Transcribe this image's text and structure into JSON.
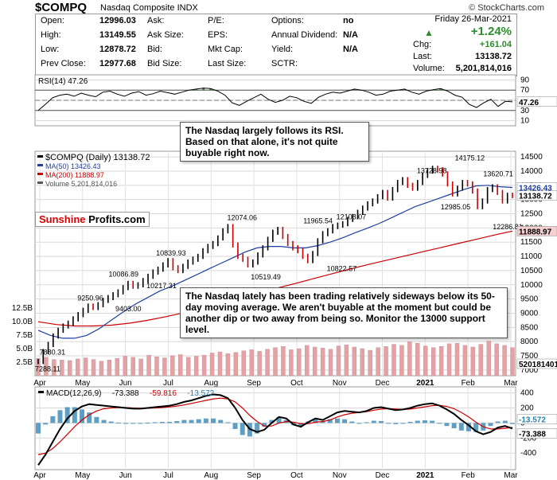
{
  "header": {
    "symbol": "$COMPQ",
    "name": "Nasdaq Composite INDX",
    "source": "© StockCharts.com"
  },
  "quote": {
    "date": "Friday 26-Mar-2021",
    "open_label": "Open:",
    "open": "12996.03",
    "high_label": "High:",
    "high": "13149.55",
    "low_label": "Low:",
    "low": "12878.72",
    "prev_label": "Prev Close:",
    "prev": "12977.68",
    "ask_label": "Ask:",
    "asksize_label": "Ask Size:",
    "bid_label": "Bid:",
    "bidsize_label": "Bid Size:",
    "pe_label": "P/E:",
    "eps_label": "EPS:",
    "mktcap_label": "Mkt Cap:",
    "lastsize_label": "Last Size:",
    "options_label": "Options:",
    "options": "no",
    "div_label": "Annual Dividend:",
    "div": "N/A",
    "yield_label": "Yield:",
    "yield": "N/A",
    "sctr_label": "SCTR:",
    "chg_pct": "+1.24%",
    "chg_label": "Chg:",
    "chg": "+161.04",
    "last_label": "Last:",
    "last": "13138.72",
    "volume_label": "Volume:",
    "volume": "5,201,814,016"
  },
  "logo": {
    "a": "Sunshine",
    "b": "Profits.com"
  },
  "notes": {
    "rsi": "The Nasdaq largely follows its RSI. Based on that alone, it's not quite buyable right now.",
    "ma": "The Nasdaq lately has been trading relatively sideways below its 50-day moving average. We aren't buyable at the moment but could be another dip or two away from being so. Monitor the 13000 support level."
  },
  "colors": {
    "price_up": "#000000",
    "price_down": "#cc0000",
    "ma50": "#1f3fa0",
    "ma200": "#cc0000",
    "volume": "#e3a3a6",
    "rsi_line": "#000000",
    "rsi_fill": "#3a8a3a",
    "macd": "#000000",
    "signal": "#cc0000",
    "histogram": "#2a7fb0"
  },
  "chart_data": [
    {
      "type": "line",
      "panel": "rsi",
      "legend": "RSI(14) 47.26",
      "last_value_label": "47.26",
      "y_ticks": [
        "70",
        "50",
        "30",
        "10",
        "90"
      ],
      "y_tick_values": [
        70,
        50,
        30,
        10,
        90
      ],
      "ylim": [
        0,
        100
      ],
      "reference_lines": [
        70,
        30
      ],
      "series": [
        {
          "name": "RSI(14)",
          "values": [
            30,
            42,
            55,
            60,
            62,
            58,
            64,
            60,
            57,
            66,
            68,
            62,
            58,
            64,
            67,
            60,
            63,
            68,
            65,
            62,
            66,
            70,
            72,
            74,
            73,
            68,
            60,
            45,
            40,
            48,
            55,
            62,
            52,
            46,
            50,
            58,
            55,
            48,
            44,
            56,
            62,
            66,
            64,
            68,
            72,
            70,
            66,
            60,
            62,
            68,
            70,
            72,
            66,
            62,
            68,
            71,
            73,
            68,
            60,
            56,
            42,
            36,
            45,
            52,
            38,
            48,
            47
          ]
        }
      ]
    },
    {
      "type": "line",
      "panel": "price",
      "legend_items": [
        "$COMPQ (Daily) 13138.72",
        "MA(50) 13426.43",
        "MA(200) 11888.97",
        "Volume 5,201,814,016"
      ],
      "x_labels": [
        "Apr",
        "May",
        "Jun",
        "Jul",
        "Aug",
        "Sep",
        "Oct",
        "Nov",
        "Dec",
        "2021",
        "Feb",
        "Mar"
      ],
      "y_ticks": [
        "14500",
        "14000",
        "13500",
        "13000",
        "12500",
        "12000",
        "11500",
        "11000",
        "10500",
        "10000",
        "9500",
        "9000",
        "8500",
        "8000",
        "7500",
        "7000"
      ],
      "y_tick_values": [
        14500,
        14000,
        13500,
        13000,
        12500,
        12000,
        11500,
        11000,
        10500,
        10000,
        9500,
        9000,
        8500,
        8000,
        7500,
        7000
      ],
      "ylim": [
        6800,
        14700
      ],
      "price_annotations": [
        {
          "label": "7288.11",
          "value": 7288.11
        },
        {
          "label": "7880.31",
          "value": 7880.31
        },
        {
          "label": "9250.96",
          "value": 9250.96
        },
        {
          "label": "9403.00",
          "value": 9403.0
        },
        {
          "label": "10086.89",
          "value": 10086.89
        },
        {
          "label": "10217.31",
          "value": 10217.31
        },
        {
          "label": "10839.93",
          "value": 10839.93
        },
        {
          "label": "12074.06",
          "value": 12074.06
        },
        {
          "label": "10519.49",
          "value": 10519.49
        },
        {
          "label": "11965.54",
          "value": 11965.54
        },
        {
          "label": "10822.57",
          "value": 10822.57
        },
        {
          "label": "12108.07",
          "value": 12108.07
        },
        {
          "label": "13728.98",
          "value": 13728.98
        },
        {
          "label": "12985.05",
          "value": 12985.05
        },
        {
          "label": "14175.12",
          "value": 14175.12
        },
        {
          "label": "13620.71",
          "value": 13620.71
        },
        {
          "label": "12286.81",
          "value": 12286.81
        }
      ],
      "right_labels": [
        {
          "label": "13426.43",
          "value": 13426.43
        },
        {
          "label": "13138.72",
          "value": 13138.72
        },
        {
          "label": "11888.97",
          "value": 11888.97
        },
        {
          "label": "5201814016",
          "value": 7220
        }
      ],
      "series": [
        {
          "name": "$COMPQ (Daily)",
          "values": [
            7300,
            7650,
            7900,
            8200,
            8400,
            8550,
            8650,
            8800,
            8950,
            9100,
            9250,
            9200,
            9300,
            9450,
            9550,
            9650,
            9750,
            9900,
            10050,
            9950,
            10000,
            10150,
            10300,
            10450,
            10550,
            10700,
            10850,
            10600,
            10500,
            10650,
            10800,
            10900,
            11000,
            11200,
            11350,
            11450,
            11650,
            11900,
            12050,
            11400,
            11000,
            10900,
            10700,
            10800,
            11050,
            11300,
            11600,
            11850,
            11950,
            11700,
            11450,
            11300,
            11200,
            11000,
            10850,
            11100,
            11550,
            11800,
            11900,
            12050,
            12100,
            12150,
            12300,
            12400,
            12550,
            12700,
            12850,
            12950,
            13100,
            13250,
            13050,
            13350,
            13600,
            13700,
            13500,
            13400,
            13600,
            13850,
            14000,
            14100,
            14050,
            13900,
            13550,
            13200,
            13400,
            13600,
            13550,
            13300,
            12750,
            12950,
            13350,
            13450,
            13250,
            12950,
            13150,
            13138.72
          ]
        },
        {
          "name": "MA(50)",
          "values": [
            8400,
            8220,
            8120,
            8120,
            8220,
            8450,
            8750,
            9050,
            9320,
            9550,
            9780,
            9950,
            10150,
            10350,
            10550,
            10750,
            10950,
            11150,
            11300,
            11350,
            11350,
            11300,
            11300,
            11380,
            11500,
            11650,
            11820,
            11980,
            12150,
            12350,
            12550,
            12750,
            12900,
            13050,
            13200,
            13350,
            13480,
            13500,
            13450,
            13426.43
          ]
        },
        {
          "name": "MA(200)",
          "values": [
            8700,
            8600,
            8550,
            8550,
            8580,
            8650,
            8750,
            8880,
            9020,
            9180,
            9350,
            9520,
            9700,
            9870,
            10030,
            10200,
            10370,
            10540,
            10700,
            10850,
            11000,
            11150,
            11300,
            11450,
            11600,
            11750,
            11888.97
          ]
        },
        {
          "name": "Volume",
          "values": [
            3.2,
            3.4,
            3.0,
            2.9,
            2.8,
            3.1,
            3.3,
            3.0,
            2.7,
            2.9,
            3.2,
            3.6,
            3.4,
            3.1,
            3.8,
            3.5,
            3.3,
            3.7,
            3.9,
            3.4,
            3.6,
            3.8,
            4.2,
            4.4,
            4.1,
            4.3,
            4.6,
            4.8,
            4.5,
            4.9,
            5.2,
            5.4,
            4.8,
            5.0,
            5.6,
            5.3,
            5.1,
            4.9,
            5.5,
            5.7,
            5.3,
            5.0,
            4.7,
            5.2,
            5.4,
            5.8,
            5.6,
            6.3,
            6.0,
            5.5,
            5.2,
            5.4,
            5.9,
            6.0,
            5.6,
            5.3,
            5.8,
            6.4,
            5.9,
            5.6,
            5.2
          ]
        }
      ],
      "volume_axis": {
        "ticks": [
          "12.5B",
          "10.0B",
          "7.5B",
          "5.0B",
          "2.5B"
        ],
        "tick_values": [
          12.5,
          10.0,
          7.5,
          5.0,
          2.5
        ],
        "ylim": [
          0,
          15
        ]
      }
    },
    {
      "type": "line",
      "panel": "macd",
      "legend": [
        "MACD(12,26,9)",
        "-73.388",
        "-59.816",
        "-13.572"
      ],
      "x_labels": [
        "Apr",
        "May",
        "Jun",
        "Jul",
        "Aug",
        "Sep",
        "Oct",
        "Nov",
        "Dec",
        "2021",
        "Feb",
        "Mar"
      ],
      "y_ticks": [
        "400",
        "200",
        "0",
        "-200",
        "-400"
      ],
      "y_tick_values": [
        400,
        200,
        0,
        -200,
        -400
      ],
      "right_labels": [
        {
          "label": "-13.572",
          "value": -13.572
        },
        {
          "label": "-73.388",
          "value": -73.388
        }
      ],
      "ylim": [
        -620,
        480
      ],
      "series": [
        {
          "name": "MACD",
          "values": [
            -560,
            -420,
            -250,
            -80,
            60,
            160,
            220,
            250,
            240,
            230,
            220,
            210,
            200,
            190,
            190,
            200,
            210,
            220,
            230,
            250,
            280,
            300,
            330,
            360,
            380,
            370,
            330,
            200,
            40,
            -80,
            -120,
            -90,
            0,
            80,
            60,
            -20,
            -50,
            10,
            60,
            40,
            90,
            140,
            160,
            150,
            140,
            160,
            200,
            210,
            190,
            170,
            180,
            200,
            230,
            250,
            260,
            230,
            180,
            120,
            40,
            -30,
            -110,
            -150,
            -120,
            -60,
            -40,
            -73.388
          ]
        },
        {
          "name": "Signal",
          "values": [
            -420,
            -400,
            -340,
            -250,
            -150,
            -50,
            40,
            110,
            160,
            190,
            200,
            205,
            205,
            200,
            195,
            195,
            200,
            205,
            215,
            225,
            240,
            260,
            280,
            300,
            320,
            330,
            320,
            280,
            200,
            100,
            20,
            -40,
            -40,
            0,
            20,
            10,
            -10,
            -10,
            10,
            20,
            40,
            80,
            110,
            130,
            140,
            150,
            170,
            185,
            190,
            185,
            180,
            185,
            200,
            215,
            230,
            235,
            220,
            190,
            140,
            80,
            10,
            -50,
            -80,
            -80,
            -70,
            -59.816
          ]
        },
        {
          "name": "Histogram",
          "values": [
            -140,
            -20,
            90,
            170,
            210,
            210,
            180,
            140,
            80,
            40,
            20,
            5,
            -5,
            -10,
            -5,
            5,
            10,
            15,
            15,
            25,
            40,
            40,
            50,
            60,
            60,
            40,
            10,
            -80,
            -160,
            -180,
            -140,
            -50,
            40,
            80,
            40,
            -30,
            -40,
            20,
            50,
            20,
            50,
            60,
            50,
            20,
            0,
            10,
            30,
            25,
            0,
            -15,
            0,
            15,
            30,
            35,
            30,
            -5,
            -40,
            -70,
            -100,
            -110,
            -120,
            -100,
            -40,
            20,
            30,
            -13.572
          ]
        }
      ]
    }
  ]
}
